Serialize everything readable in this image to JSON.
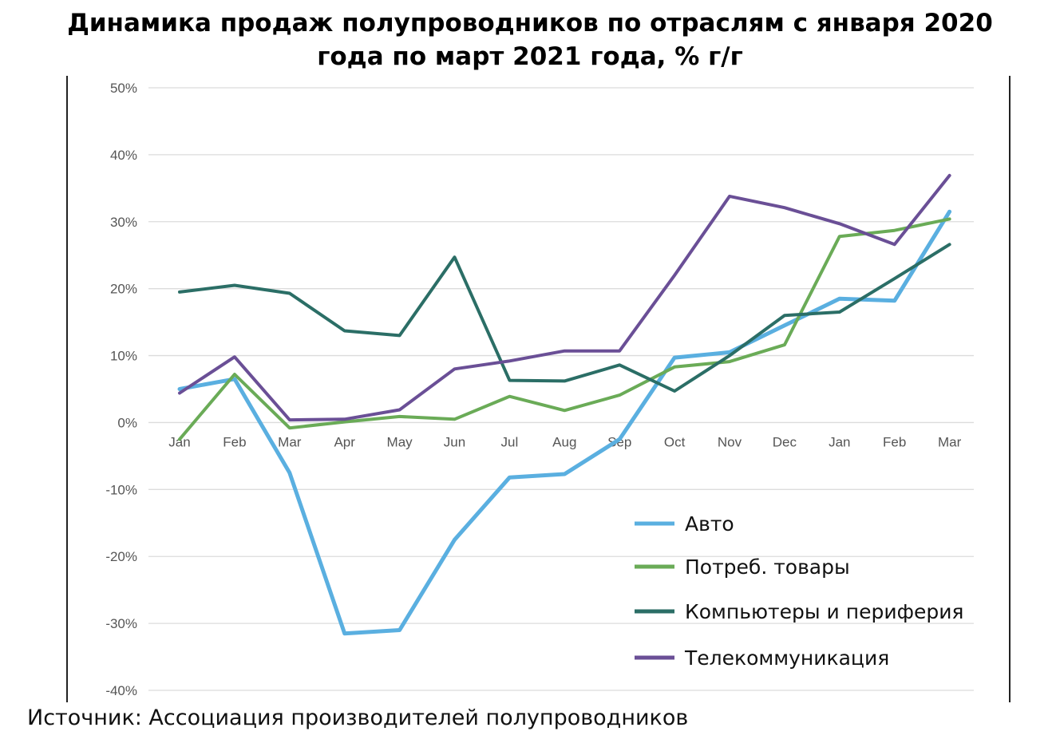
{
  "title_line1": "Динамика продаж полупроводников по отраслям с января 2020",
  "title_line2": "года по март 2021 года, % г/г",
  "source": "Источник: Ассоциация производителей полупроводников",
  "chart_data": {
    "type": "line",
    "title": "Динамика продаж полупроводников по отраслям с января 2020 года по март 2021 года, % г/г",
    "categories": [
      "Jan",
      "Feb",
      "Mar",
      "Apr",
      "May",
      "Jun",
      "Jul",
      "Aug",
      "Sep",
      "Oct",
      "Nov",
      "Dec",
      "Jan",
      "Feb",
      "Mar"
    ],
    "y_ticks": [
      "50%",
      "40%",
      "30%",
      "20%",
      "10%",
      "0%",
      "-10%",
      "-20%",
      "-30%",
      "-40%"
    ],
    "ylim": [
      -40,
      50
    ],
    "grid": true,
    "legend_position": "bottom-right",
    "series": [
      {
        "name": "Авто",
        "color": "#5aafe0",
        "width": 5,
        "values": [
          5.0,
          6.5,
          -7.5,
          -31.5,
          -31.0,
          -17.5,
          -8.2,
          -7.7,
          -2.5,
          9.7,
          10.5,
          14.5,
          18.5,
          18.2,
          31.5
        ]
      },
      {
        "name": "Потреб. товары",
        "color": "#6aab57",
        "width": 4,
        "values": [
          -2.5,
          7.2,
          -0.8,
          0.1,
          0.9,
          0.5,
          3.9,
          1.8,
          4.1,
          8.3,
          9.1,
          11.6,
          27.8,
          28.7,
          30.4
        ]
      },
      {
        "name": "Компьютеры и периферия",
        "color": "#2b6e66",
        "width": 4,
        "values": [
          19.5,
          20.5,
          19.3,
          13.7,
          13.0,
          24.7,
          6.3,
          6.2,
          8.6,
          4.7,
          10.0,
          16.0,
          16.5,
          21.5,
          26.6
        ]
      },
      {
        "name": "Телекоммуникация",
        "color": "#6a4f96",
        "width": 4,
        "values": [
          4.4,
          9.8,
          0.4,
          0.5,
          1.9,
          8.0,
          9.2,
          10.7,
          10.7,
          22.0,
          33.8,
          32.1,
          29.7,
          26.6,
          36.9
        ]
      }
    ]
  }
}
